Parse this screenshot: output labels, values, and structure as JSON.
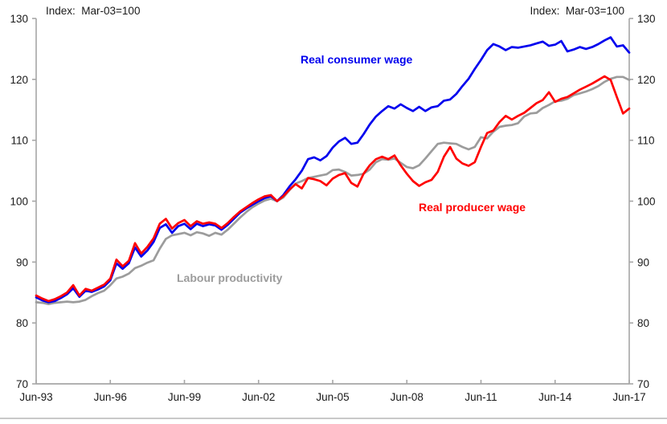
{
  "header": {
    "note_left": "Index:  Mar-03=100",
    "note_right": "Index:  Mar-03=100"
  },
  "colors": {
    "consumer_wage": "#0000EE",
    "producer_wage": "#FF0000",
    "labour_productivity": "#9C9C9C",
    "axis": "#A6A6A6",
    "footer_rule": "#C9C9C9"
  },
  "labels": {
    "consumer": "Real consumer wage",
    "producer": "Real producer wage",
    "productivity": "Labour productivity"
  },
  "chart_data": {
    "type": "line",
    "title": "",
    "xlabel": "",
    "ylabel": "Index: Mar-03=100",
    "x_start": "Jun-93",
    "x_end": "Jun-17",
    "x_frequency": "quarterly",
    "x_tick_labels": [
      "Jun-93",
      "Jun-96",
      "Jun-99",
      "Jun-02",
      "Jun-05",
      "Jun-08",
      "Jun-11",
      "Jun-14",
      "Jun-17"
    ],
    "x_ticks_every_n_points": 12,
    "y_ticks": [
      70,
      80,
      90,
      100,
      110,
      120,
      130
    ],
    "ylim": [
      70,
      130
    ],
    "grid": false,
    "legend_position": "inline-annotations",
    "series": [
      {
        "name": "Real consumer wage",
        "color": "#0000EE",
        "values": [
          84.2,
          83.7,
          83.4,
          83.6,
          84.1,
          84.7,
          85.7,
          84.3,
          85.3,
          85.1,
          85.5,
          86.0,
          87.0,
          89.8,
          88.9,
          89.8,
          92.4,
          90.9,
          91.9,
          93.3,
          95.6,
          96.2,
          94.8,
          95.9,
          96.3,
          95.4,
          96.3,
          95.9,
          96.2,
          96.0,
          95.3,
          96.1,
          97.1,
          98.1,
          98.8,
          99.4,
          100.0,
          100.5,
          100.8,
          100.0,
          101.0,
          102.4,
          103.6,
          105.0,
          106.9,
          107.2,
          106.7,
          107.4,
          108.8,
          109.8,
          110.4,
          109.4,
          109.6,
          111.0,
          112.6,
          113.9,
          114.8,
          115.6,
          115.2,
          115.9,
          115.3,
          114.8,
          115.5,
          114.8,
          115.4,
          115.6,
          116.5,
          116.7,
          117.6,
          118.9,
          120.1,
          121.7,
          123.2,
          124.8,
          125.8,
          125.4,
          124.8,
          125.3,
          125.2,
          125.4,
          125.6,
          125.9,
          126.2,
          125.5,
          125.7,
          126.3,
          124.6,
          124.9,
          125.3,
          125.0,
          125.3,
          125.8,
          126.4,
          126.9,
          125.4,
          125.6,
          124.4
        ]
      },
      {
        "name": "Real producer wage",
        "color": "#FF0000",
        "values": [
          84.5,
          84.0,
          83.6,
          83.9,
          84.4,
          85.0,
          86.2,
          84.5,
          85.6,
          85.3,
          85.8,
          86.3,
          87.3,
          90.4,
          89.3,
          90.2,
          93.1,
          91.4,
          92.5,
          93.9,
          96.3,
          97.1,
          95.5,
          96.4,
          96.9,
          95.9,
          96.7,
          96.3,
          96.5,
          96.3,
          95.6,
          96.4,
          97.4,
          98.3,
          99.0,
          99.7,
          100.3,
          100.8,
          101.0,
          100.0,
          100.8,
          101.9,
          102.8,
          102.1,
          103.8,
          103.6,
          103.3,
          102.6,
          103.7,
          104.3,
          104.6,
          103.0,
          102.4,
          104.5,
          105.9,
          106.9,
          107.3,
          106.9,
          107.5,
          105.9,
          104.5,
          103.3,
          102.5,
          103.1,
          103.5,
          104.8,
          107.3,
          108.9,
          107.0,
          106.2,
          105.8,
          106.4,
          108.9,
          111.2,
          111.6,
          113.0,
          114.0,
          113.4,
          114.0,
          114.5,
          115.3,
          116.1,
          116.6,
          117.9,
          116.3,
          116.8,
          117.1,
          117.7,
          118.3,
          118.8,
          119.3,
          119.9,
          120.5,
          119.9,
          117.1,
          114.4,
          115.2
        ]
      },
      {
        "name": "Labour productivity",
        "color": "#9C9C9C",
        "values": [
          83.4,
          83.3,
          83.1,
          83.3,
          83.4,
          83.5,
          83.4,
          83.5,
          83.8,
          84.4,
          84.9,
          85.3,
          86.2,
          87.3,
          87.6,
          88.1,
          89.0,
          89.4,
          89.9,
          90.3,
          92.2,
          93.8,
          94.4,
          94.6,
          94.8,
          94.4,
          94.9,
          94.7,
          94.3,
          94.8,
          94.5,
          95.3,
          96.3,
          97.3,
          98.2,
          99.0,
          99.6,
          100.1,
          100.4,
          100.0,
          100.6,
          101.8,
          102.9,
          103.3,
          103.8,
          104.0,
          104.2,
          104.4,
          105.1,
          105.2,
          104.8,
          104.2,
          104.3,
          104.5,
          105.2,
          106.4,
          106.9,
          106.8,
          107.0,
          106.3,
          105.6,
          105.4,
          105.9,
          107.0,
          108.2,
          109.4,
          109.6,
          109.5,
          109.4,
          108.9,
          108.5,
          108.9,
          110.5,
          110.3,
          111.4,
          112.2,
          112.4,
          112.5,
          112.8,
          113.9,
          114.4,
          114.5,
          115.3,
          115.8,
          116.4,
          116.5,
          116.8,
          117.4,
          117.7,
          118.0,
          118.4,
          118.9,
          119.6,
          120.1,
          120.4,
          120.4,
          119.9
        ]
      }
    ],
    "annotations": [
      {
        "text": "Index:  Mar-03=100",
        "position": "top-left"
      },
      {
        "text": "Index:  Mar-03=100",
        "position": "top-right"
      },
      {
        "text": "Real consumer wage",
        "series": "Real consumer wage"
      },
      {
        "text": "Real producer wage",
        "series": "Real producer wage"
      },
      {
        "text": "Labour productivity",
        "series": "Labour productivity"
      }
    ]
  }
}
